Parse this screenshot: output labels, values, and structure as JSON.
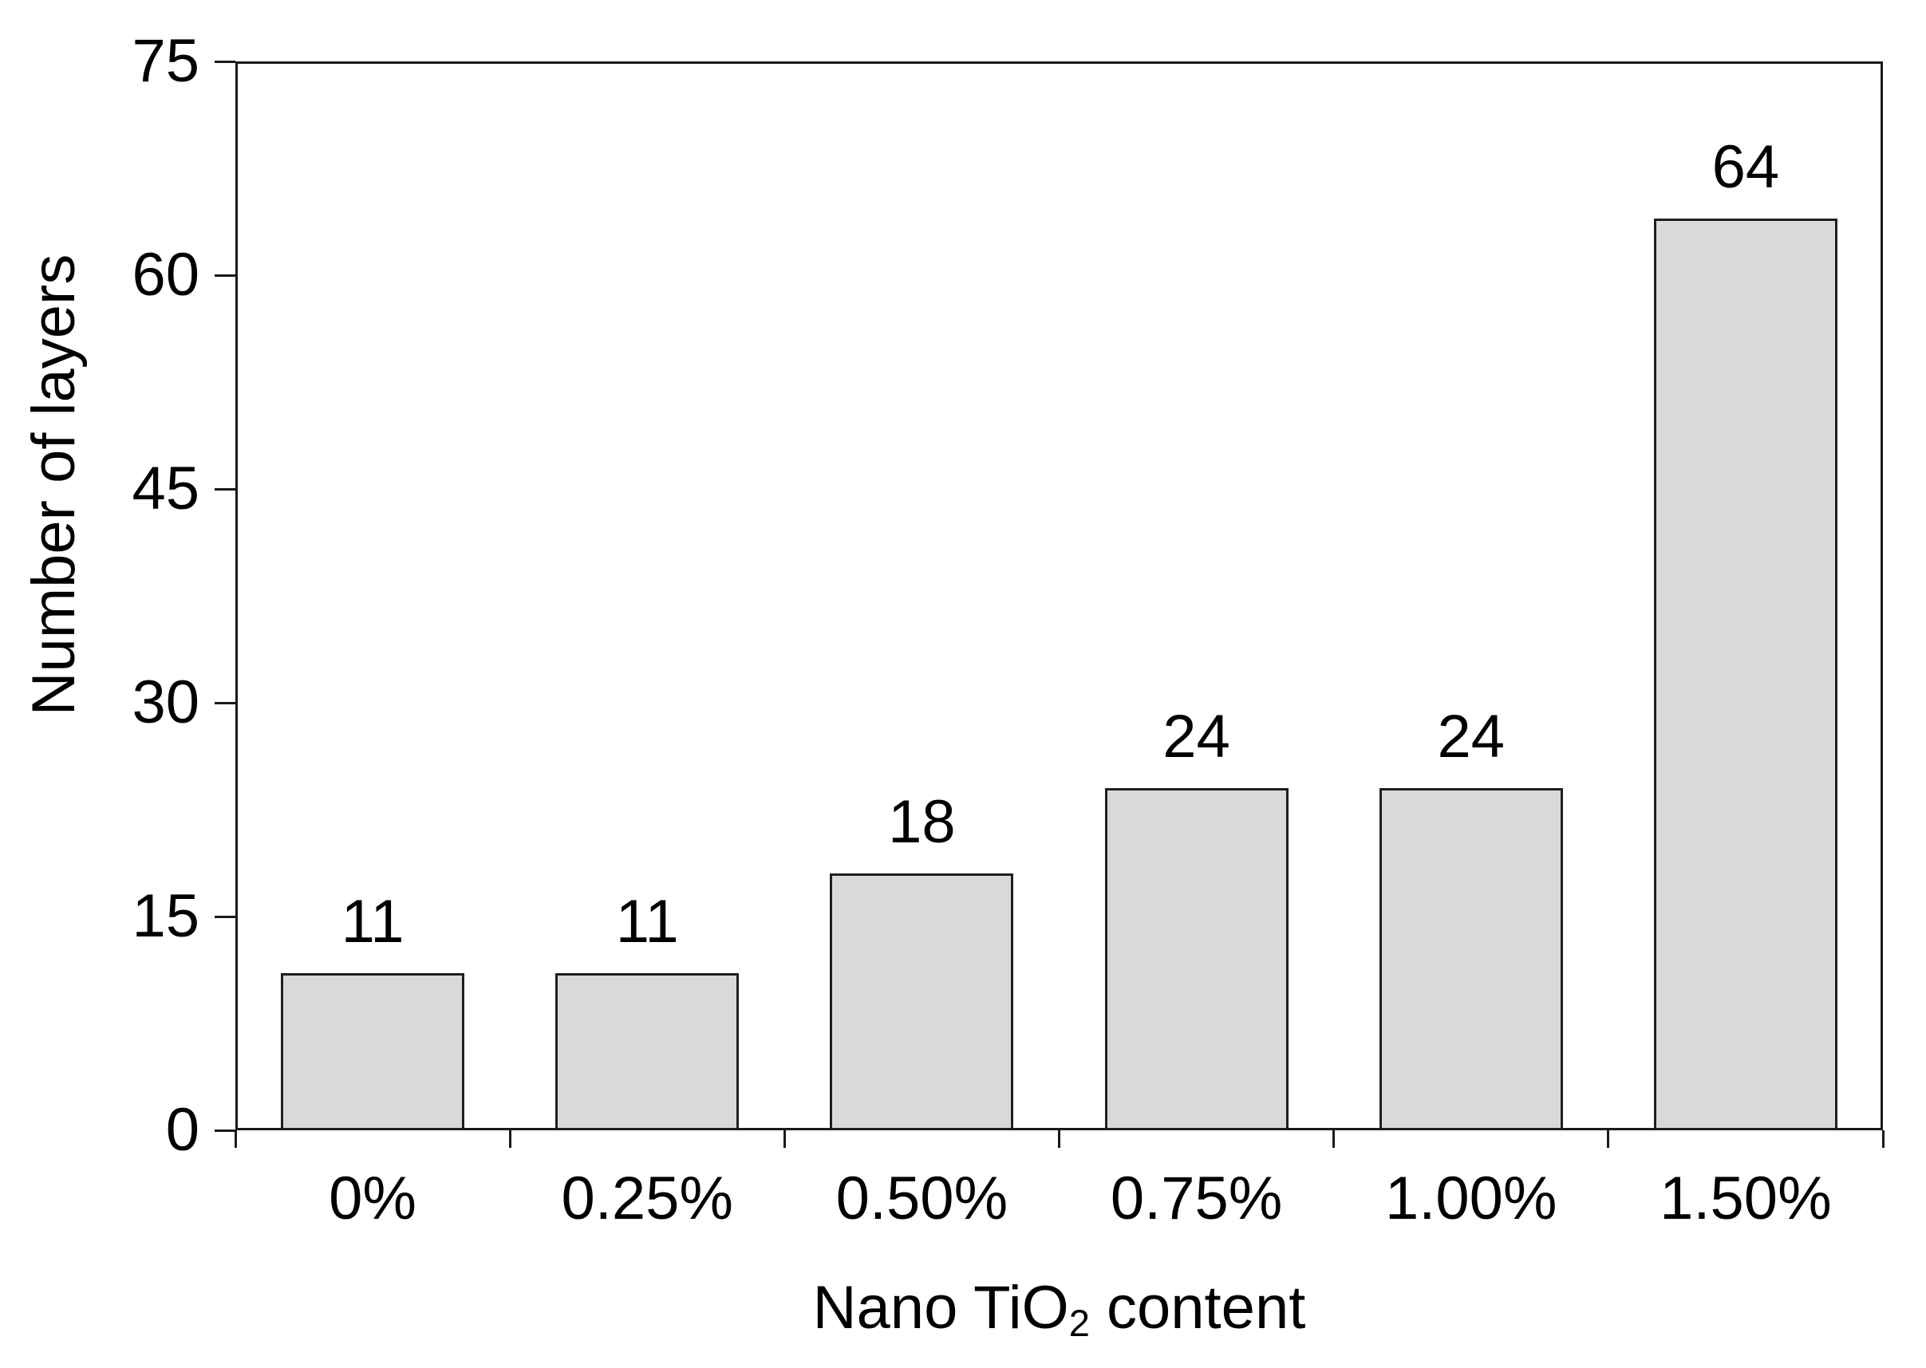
{
  "chart_data": {
    "type": "bar",
    "categories": [
      "0%",
      "0.25%",
      "0.50%",
      "0.75%",
      "1.00%",
      "1.50%"
    ],
    "values": [
      11,
      11,
      18,
      24,
      24,
      64
    ],
    "bar_labels": [
      "11",
      "11",
      "18",
      "24",
      "24",
      "64"
    ],
    "xlabel": "Nano TiO2 content",
    "xlabel_parts": {
      "pre": "Nano TiO",
      "sub": "2",
      "post": " content"
    },
    "ylabel": "Number of layers",
    "ylim": [
      0,
      75
    ],
    "yticks": [
      0,
      15,
      30,
      45,
      60,
      75
    ],
    "ytick_labels": [
      "0",
      "15",
      "30",
      "45",
      "60",
      "75"
    ],
    "grid": false,
    "legend": "none",
    "colors": {
      "bar_fill": "#d9d9d9",
      "bar_border": "#1f1f1f",
      "axis": "#1a1a1a",
      "text": "#000000",
      "background": "#ffffff"
    }
  }
}
